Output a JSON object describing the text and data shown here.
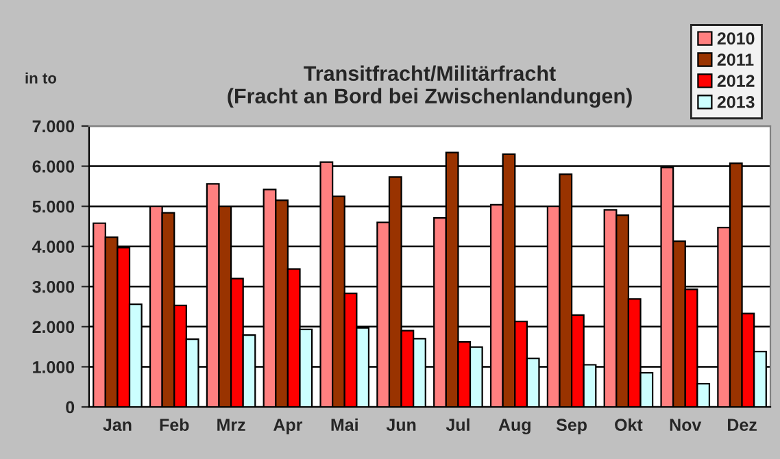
{
  "chart_data": {
    "type": "bar",
    "title": "Transitfracht/Militärfracht\n(Fracht an Bord bei Zwischenlandungen)",
    "ylabel": "in to",
    "categories": [
      "Jan",
      "Feb",
      "Mrz",
      "Apr",
      "Mai",
      "Jun",
      "Jul",
      "Aug",
      "Sep",
      "Okt",
      "Nov",
      "Dez"
    ],
    "series": [
      {
        "name": "2010",
        "color": "#ff8080",
        "values": [
          4580,
          5000,
          5560,
          5420,
          6100,
          4600,
          4710,
          5040,
          5000,
          4910,
          5970,
          4470
        ]
      },
      {
        "name": "2011",
        "color": "#993300",
        "values": [
          4230,
          4840,
          5000,
          5150,
          5250,
          5730,
          6340,
          6300,
          5800,
          4780,
          4130,
          6070
        ]
      },
      {
        "name": "2012",
        "color": "#ff0000",
        "values": [
          3970,
          2530,
          3200,
          3440,
          2830,
          1900,
          1620,
          2130,
          2290,
          2690,
          2930,
          2330
        ]
      },
      {
        "name": "2013",
        "color": "#ccffff",
        "values": [
          2560,
          1690,
          1790,
          1930,
          1970,
          1700,
          1490,
          1210,
          1050,
          850,
          580,
          1380
        ]
      }
    ],
    "ylim": [
      0,
      7000
    ],
    "yticks": [
      0,
      {
        "value": 1000,
        "label": "1.000"
      },
      {
        "value": 2000,
        "label": "2.000"
      },
      {
        "value": 3000,
        "label": "3.000"
      },
      {
        "value": 4000,
        "label": "4.000"
      },
      {
        "value": 5000,
        "label": "5.000"
      },
      {
        "value": 6000,
        "label": "6.000"
      },
      {
        "value": 7000,
        "label": "7.000"
      }
    ],
    "grid": "y",
    "legend": "top right"
  }
}
